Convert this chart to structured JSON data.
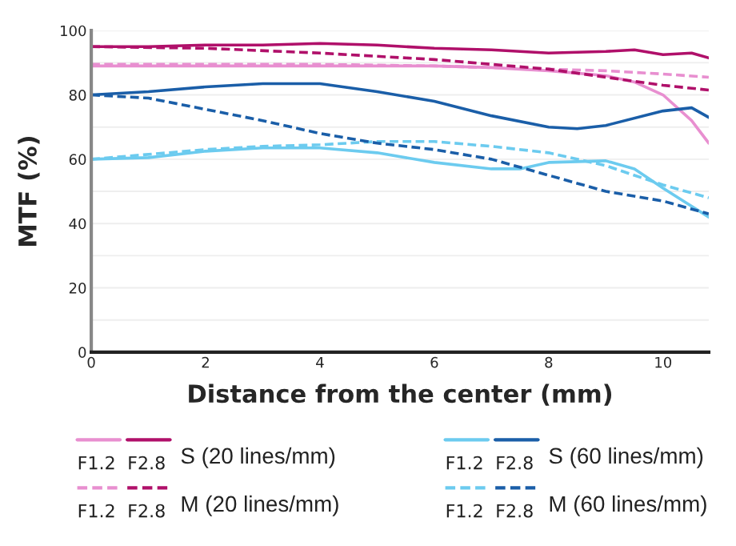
{
  "chart_data": {
    "type": "line",
    "xlabel": "Distance from the center (mm)",
    "ylabel": "MTF (%)",
    "xlim": [
      0,
      10.8
    ],
    "xticks": [
      0,
      2,
      4,
      6,
      8,
      10
    ],
    "ylim": [
      0,
      100
    ],
    "yticks": [
      0,
      {
        "value": 10,
        "label": null
      },
      20,
      {
        "value": 30,
        "label": null
      },
      40,
      {
        "value": 50,
        "label": null
      },
      60,
      {
        "value": 70,
        "label": null
      },
      80,
      {
        "value": 90,
        "label": null
      },
      100
    ],
    "grid": "y",
    "legend": "bottom",
    "annotations": [
      "S (20 lines/mm)",
      "M (20 lines/mm)",
      "S (60 lines/mm)",
      "M (60 lines/mm)"
    ],
    "series": [
      {
        "name": "F1.2",
        "color": "#e88fd0",
        "line_style": "solid",
        "x": [
          0,
          1,
          2,
          3,
          4,
          5,
          6,
          7,
          8,
          9,
          9.5,
          10,
          10.5,
          10.8
        ],
        "values": [
          89,
          89,
          89,
          89,
          89,
          89,
          89,
          88.5,
          87.5,
          86,
          84,
          80,
          72,
          65
        ]
      },
      {
        "name": "F2.8",
        "color": "#b0106a",
        "line_style": "solid",
        "x": [
          0,
          1,
          2,
          3,
          4,
          5,
          6,
          7,
          8,
          9,
          9.5,
          10,
          10.5,
          10.8
        ],
        "values": [
          95,
          95,
          95.5,
          95.5,
          96,
          95.5,
          94.5,
          94,
          93,
          93.5,
          94,
          92.5,
          93,
          91.5
        ]
      },
      {
        "name": "F1.2",
        "color": "#e88fd0",
        "line_style": "dashed",
        "x": [
          0,
          2,
          4,
          6,
          8,
          9,
          10,
          10.8
        ],
        "values": [
          89.5,
          89.5,
          89.5,
          89,
          88,
          87.5,
          86.5,
          85.5
        ]
      },
      {
        "name": "F2.8",
        "color": "#b0106a",
        "line_style": "dashed",
        "x": [
          0,
          2,
          4,
          6,
          8,
          9,
          10,
          10.8
        ],
        "values": [
          95,
          94.5,
          93,
          91,
          88,
          85.5,
          83,
          81.5
        ]
      },
      {
        "name": "F1.2",
        "color": "#6ccbef",
        "line_style": "solid",
        "x": [
          0,
          1,
          2,
          3,
          4,
          5,
          6,
          7,
          7.5,
          8,
          9,
          9.5,
          10,
          10.8
        ],
        "values": [
          60,
          60.5,
          62.5,
          63.5,
          63.5,
          62,
          59,
          57,
          57,
          59,
          59.5,
          57,
          51,
          42
        ]
      },
      {
        "name": "F2.8",
        "color": "#1a5ea8",
        "line_style": "solid",
        "x": [
          0,
          1,
          2,
          3,
          4,
          5,
          6,
          7,
          8,
          8.5,
          9,
          10,
          10.5,
          10.8
        ],
        "values": [
          80,
          81,
          82.5,
          83.5,
          83.5,
          81,
          78,
          73.5,
          70,
          69.5,
          70.5,
          75,
          76,
          73
        ]
      },
      {
        "name": "F1.2",
        "color": "#6ccbef",
        "line_style": "dashed",
        "x": [
          0,
          1,
          2,
          3,
          4,
          5,
          6,
          7,
          8,
          9,
          10,
          10.8
        ],
        "values": [
          60,
          61.5,
          63,
          64,
          64.5,
          65.5,
          65.5,
          64,
          62,
          58,
          52,
          48
        ]
      },
      {
        "name": "F2.8",
        "color": "#1a5ea8",
        "line_style": "dashed",
        "x": [
          0,
          1,
          2,
          3,
          4,
          5,
          6,
          7,
          8,
          9,
          10,
          10.8
        ],
        "values": [
          80,
          79,
          75.5,
          72,
          68,
          65,
          63,
          60,
          55,
          50,
          47,
          43
        ]
      }
    ]
  }
}
